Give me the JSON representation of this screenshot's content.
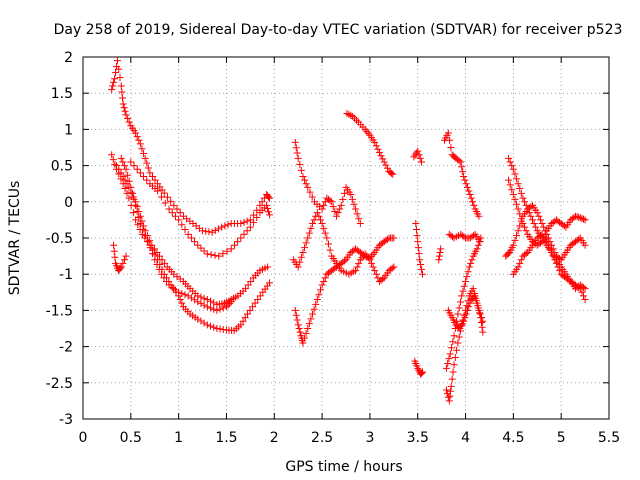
{
  "chart_data": {
    "type": "scatter",
    "title": "Day 258 of 2019, Sidereal Day-to-day VTEC variation (SDTVAR) for receiver p523",
    "xlabel": "GPS time / hours",
    "ylabel": "SDTVAR / TECUs",
    "xlim": [
      0,
      5.5
    ],
    "ylim": [
      -3,
      2
    ],
    "xticks": [
      "0",
      "0.5",
      "1",
      "1.5",
      "2",
      "2.5",
      "3",
      "3.5",
      "4",
      "4.5",
      "5",
      "5.5"
    ],
    "yticks": [
      "2",
      "1.5",
      "1",
      "0.5",
      "0",
      "-0.5",
      "-1",
      "-1.5",
      "-2",
      "-2.5",
      "-3"
    ],
    "grid": true,
    "marker": "+",
    "color": "#ff0000",
    "tracks": [
      [
        [
          0.3,
          1.55
        ],
        [
          0.33,
          1.7
        ],
        [
          0.36,
          1.95
        ],
        [
          0.4,
          1.6
        ],
        [
          0.42,
          1.35
        ],
        [
          0.45,
          1.2
        ],
        [
          0.5,
          1.05
        ],
        [
          0.55,
          0.95
        ],
        [
          0.6,
          0.8
        ],
        [
          0.65,
          0.6
        ],
        [
          0.7,
          0.4
        ],
        [
          0.78,
          0.25
        ],
        [
          0.85,
          0.12
        ],
        [
          0.95,
          -0.05
        ],
        [
          1.05,
          -0.2
        ],
        [
          1.15,
          -0.3
        ],
        [
          1.25,
          -0.4
        ],
        [
          1.35,
          -0.42
        ],
        [
          1.45,
          -0.35
        ],
        [
          1.55,
          -0.3
        ],
        [
          1.65,
          -0.3
        ],
        [
          1.75,
          -0.25
        ],
        [
          1.85,
          -0.05
        ],
        [
          1.92,
          0.1
        ],
        [
          1.95,
          0.05
        ]
      ],
      [
        [
          0.3,
          0.65
        ],
        [
          0.35,
          0.45
        ],
        [
          0.42,
          0.25
        ],
        [
          0.48,
          0.05
        ],
        [
          0.55,
          -0.25
        ],
        [
          0.62,
          -0.45
        ],
        [
          0.7,
          -0.6
        ],
        [
          0.78,
          -0.8
        ],
        [
          0.85,
          -1.0
        ],
        [
          0.92,
          -1.15
        ],
        [
          1.0,
          -1.3
        ],
        [
          1.05,
          -1.45
        ],
        [
          1.12,
          -1.55
        ],
        [
          1.2,
          -1.62
        ],
        [
          1.3,
          -1.7
        ],
        [
          1.4,
          -1.75
        ],
        [
          1.5,
          -1.77
        ],
        [
          1.58,
          -1.78
        ],
        [
          1.65,
          -1.7
        ],
        [
          1.72,
          -1.55
        ],
        [
          1.8,
          -1.4
        ],
        [
          1.88,
          -1.25
        ],
        [
          1.95,
          -1.12
        ]
      ],
      [
        [
          0.32,
          -0.6
        ],
        [
          0.34,
          -0.85
        ],
        [
          0.37,
          -0.95
        ],
        [
          0.4,
          -0.9
        ],
        [
          0.45,
          -0.75
        ]
      ],
      [
        [
          0.35,
          0.5
        ],
        [
          0.42,
          0.35
        ],
        [
          0.48,
          0.2
        ],
        [
          0.55,
          0.0
        ],
        [
          0.6,
          -0.2
        ],
        [
          0.65,
          -0.4
        ],
        [
          0.72,
          -0.6
        ],
        [
          0.8,
          -0.75
        ],
        [
          0.88,
          -0.9
        ],
        [
          0.95,
          -1.0
        ],
        [
          1.05,
          -1.1
        ],
        [
          1.12,
          -1.2
        ],
        [
          1.2,
          -1.3
        ],
        [
          1.3,
          -1.35
        ],
        [
          1.4,
          -1.42
        ],
        [
          1.48,
          -1.4
        ],
        [
          1.55,
          -1.35
        ],
        [
          1.62,
          -1.3
        ],
        [
          1.7,
          -1.2
        ],
        [
          1.78,
          -1.05
        ],
        [
          1.85,
          -0.95
        ],
        [
          1.93,
          -0.9
        ]
      ],
      [
        [
          0.4,
          0.6
        ],
        [
          0.45,
          0.45
        ],
        [
          0.5,
          0.2
        ],
        [
          0.55,
          -0.05
        ],
        [
          0.6,
          -0.3
        ],
        [
          0.68,
          -0.55
        ],
        [
          0.75,
          -0.8
        ],
        [
          0.82,
          -1.0
        ],
        [
          0.9,
          -1.15
        ],
        [
          1.0,
          -1.25
        ],
        [
          1.1,
          -1.3
        ],
        [
          1.2,
          -1.38
        ],
        [
          1.3,
          -1.45
        ],
        [
          1.4,
          -1.5
        ],
        [
          1.5,
          -1.45
        ],
        [
          1.55,
          -1.38
        ]
      ],
      [
        [
          0.5,
          0.55
        ],
        [
          0.6,
          0.4
        ],
        [
          0.7,
          0.25
        ],
        [
          0.78,
          0.15
        ],
        [
          0.9,
          -0.1
        ],
        [
          1.0,
          -0.25
        ],
        [
          1.1,
          -0.45
        ],
        [
          1.2,
          -0.6
        ],
        [
          1.3,
          -0.72
        ],
        [
          1.42,
          -0.75
        ],
        [
          1.55,
          -0.65
        ],
        [
          1.65,
          -0.5
        ],
        [
          1.75,
          -0.35
        ],
        [
          1.85,
          -0.15
        ],
        [
          1.92,
          -0.05
        ],
        [
          1.95,
          -0.18
        ]
      ],
      [
        [
          2.22,
          0.82
        ],
        [
          2.25,
          0.6
        ],
        [
          2.3,
          0.35
        ],
        [
          2.35,
          0.2
        ],
        [
          2.42,
          0.0
        ],
        [
          2.5,
          -0.1
        ],
        [
          2.55,
          0.05
        ],
        [
          2.6,
          0.0
        ],
        [
          2.65,
          -0.2
        ],
        [
          2.7,
          -0.05
        ],
        [
          2.75,
          0.2
        ],
        [
          2.8,
          0.1
        ],
        [
          2.85,
          -0.1
        ],
        [
          2.9,
          -0.3
        ]
      ],
      [
        [
          2.2,
          -0.8
        ],
        [
          2.25,
          -0.9
        ],
        [
          2.3,
          -0.7
        ],
        [
          2.35,
          -0.5
        ],
        [
          2.4,
          -0.3
        ],
        [
          2.45,
          -0.15
        ],
        [
          2.5,
          -0.3
        ],
        [
          2.55,
          -0.5
        ],
        [
          2.6,
          -0.75
        ],
        [
          2.65,
          -0.85
        ],
        [
          2.7,
          -0.95
        ],
        [
          2.78,
          -1.0
        ],
        [
          2.85,
          -0.95
        ],
        [
          2.9,
          -0.8
        ],
        [
          2.95,
          -0.72
        ],
        [
          3.0,
          -0.8
        ],
        [
          3.05,
          -0.95
        ],
        [
          3.1,
          -1.1
        ],
        [
          3.15,
          -1.05
        ],
        [
          3.2,
          -0.95
        ],
        [
          3.25,
          -0.9
        ]
      ],
      [
        [
          2.22,
          -1.5
        ],
        [
          2.25,
          -1.7
        ],
        [
          2.28,
          -1.85
        ],
        [
          2.3,
          -1.95
        ],
        [
          2.35,
          -1.75
        ],
        [
          2.4,
          -1.55
        ],
        [
          2.45,
          -1.35
        ],
        [
          2.5,
          -1.15
        ],
        [
          2.55,
          -1.0
        ],
        [
          2.6,
          -0.95
        ],
        [
          2.65,
          -0.9
        ],
        [
          2.7,
          -0.85
        ],
        [
          2.75,
          -0.8
        ],
        [
          2.8,
          -0.7
        ],
        [
          2.85,
          -0.65
        ],
        [
          2.9,
          -0.7
        ],
        [
          2.95,
          -0.75
        ],
        [
          3.0,
          -0.78
        ],
        [
          3.05,
          -0.7
        ],
        [
          3.1,
          -0.6
        ],
        [
          3.15,
          -0.55
        ],
        [
          3.2,
          -0.5
        ],
        [
          3.25,
          -0.5
        ]
      ],
      [
        [
          2.76,
          1.22
        ],
        [
          2.82,
          1.18
        ],
        [
          2.88,
          1.1
        ],
        [
          2.95,
          1.0
        ],
        [
          3.0,
          0.92
        ],
        [
          3.05,
          0.82
        ],
        [
          3.1,
          0.68
        ],
        [
          3.15,
          0.55
        ],
        [
          3.2,
          0.42
        ],
        [
          3.24,
          0.38
        ]
      ],
      [
        [
          3.46,
          0.62
        ],
        [
          3.5,
          0.7
        ],
        [
          3.54,
          0.55
        ]
      ],
      [
        [
          3.48,
          -0.3
        ],
        [
          3.5,
          -0.55
        ],
        [
          3.52,
          -0.8
        ],
        [
          3.55,
          -1.0
        ]
      ],
      [
        [
          3.47,
          -2.2
        ],
        [
          3.5,
          -2.3
        ],
        [
          3.53,
          -2.38
        ],
        [
          3.55,
          -2.35
        ]
      ],
      [
        [
          3.72,
          -0.8
        ],
        [
          3.74,
          -0.65
        ]
      ],
      [
        [
          3.78,
          0.85
        ],
        [
          3.82,
          0.95
        ],
        [
          3.86,
          0.65
        ],
        [
          3.9,
          0.6
        ],
        [
          3.95,
          0.55
        ],
        [
          3.98,
          0.35
        ],
        [
          4.02,
          0.2
        ],
        [
          4.06,
          0.05
        ],
        [
          4.1,
          -0.1
        ],
        [
          4.14,
          -0.2
        ]
      ],
      [
        [
          3.83,
          -0.45
        ],
        [
          3.88,
          -0.5
        ],
        [
          3.95,
          -0.45
        ],
        [
          4.0,
          -0.5
        ],
        [
          4.05,
          -0.5
        ],
        [
          4.1,
          -0.45
        ],
        [
          4.15,
          -0.55
        ]
      ],
      [
        [
          3.8,
          -2.6
        ],
        [
          3.83,
          -2.75
        ],
        [
          3.85,
          -2.55
        ],
        [
          3.88,
          -2.25
        ],
        [
          3.92,
          -1.95
        ],
        [
          3.96,
          -1.7
        ],
        [
          4.0,
          -1.5
        ],
        [
          4.04,
          -1.3
        ],
        [
          4.08,
          -1.2
        ],
        [
          4.12,
          -1.4
        ],
        [
          4.16,
          -1.6
        ],
        [
          4.18,
          -1.8
        ]
      ],
      [
        [
          3.8,
          -2.3
        ],
        [
          3.84,
          -2.1
        ],
        [
          3.88,
          -1.85
        ],
        [
          3.92,
          -1.55
        ],
        [
          3.96,
          -1.3
        ],
        [
          4.0,
          -1.1
        ],
        [
          4.04,
          -0.9
        ],
        [
          4.08,
          -0.75
        ],
        [
          4.12,
          -0.65
        ],
        [
          4.16,
          -0.5
        ]
      ],
      [
        [
          3.82,
          -1.5
        ],
        [
          3.86,
          -1.6
        ],
        [
          3.9,
          -1.7
        ],
        [
          3.94,
          -1.75
        ],
        [
          3.98,
          -1.65
        ],
        [
          4.02,
          -1.5
        ],
        [
          4.06,
          -1.35
        ],
        [
          4.1,
          -1.3
        ],
        [
          4.14,
          -1.5
        ],
        [
          4.18,
          -1.65
        ]
      ],
      [
        [
          4.45,
          0.6
        ],
        [
          4.5,
          0.45
        ],
        [
          4.55,
          0.25
        ],
        [
          4.6,
          0.05
        ],
        [
          4.65,
          -0.1
        ],
        [
          4.7,
          -0.25
        ],
        [
          4.75,
          -0.4
        ],
        [
          4.8,
          -0.5
        ],
        [
          4.85,
          -0.6
        ],
        [
          4.9,
          -0.7
        ],
        [
          4.95,
          -0.8
        ],
        [
          5.0,
          -0.9
        ],
        [
          5.05,
          -1.0
        ],
        [
          5.1,
          -1.1
        ],
        [
          5.15,
          -1.15
        ],
        [
          5.2,
          -1.2
        ],
        [
          5.25,
          -1.35
        ]
      ],
      [
        [
          4.42,
          -0.75
        ],
        [
          4.46,
          -0.7
        ],
        [
          4.5,
          -0.6
        ],
        [
          4.55,
          -0.4
        ],
        [
          4.6,
          -0.2
        ],
        [
          4.65,
          -0.1
        ],
        [
          4.7,
          -0.05
        ],
        [
          4.75,
          -0.15
        ],
        [
          4.8,
          -0.3
        ],
        [
          4.85,
          -0.45
        ],
        [
          4.9,
          -0.6
        ],
        [
          4.95,
          -0.75
        ],
        [
          5.0,
          -0.8
        ],
        [
          5.05,
          -0.7
        ],
        [
          5.1,
          -0.6
        ],
        [
          5.15,
          -0.55
        ],
        [
          5.2,
          -0.5
        ],
        [
          5.25,
          -0.6
        ]
      ],
      [
        [
          4.45,
          0.3
        ],
        [
          4.5,
          0.1
        ],
        [
          4.55,
          -0.1
        ],
        [
          4.6,
          -0.3
        ],
        [
          4.65,
          -0.45
        ],
        [
          4.7,
          -0.55
        ],
        [
          4.75,
          -0.6
        ],
        [
          4.8,
          -0.55
        ],
        [
          4.85,
          -0.4
        ],
        [
          4.9,
          -0.3
        ],
        [
          4.95,
          -0.25
        ],
        [
          5.0,
          -0.3
        ],
        [
          5.05,
          -0.35
        ],
        [
          5.1,
          -0.25
        ],
        [
          5.15,
          -0.2
        ],
        [
          5.2,
          -0.22
        ],
        [
          5.25,
          -0.25
        ]
      ],
      [
        [
          4.5,
          -1.0
        ],
        [
          4.55,
          -0.9
        ],
        [
          4.6,
          -0.75
        ],
        [
          4.65,
          -0.7
        ],
        [
          4.7,
          -0.6
        ],
        [
          4.75,
          -0.5
        ],
        [
          4.8,
          -0.45
        ],
        [
          4.85,
          -0.55
        ],
        [
          4.9,
          -0.7
        ],
        [
          4.95,
          -0.85
        ],
        [
          5.0,
          -1.0
        ],
        [
          5.05,
          -1.05
        ],
        [
          5.1,
          -1.1
        ],
        [
          5.15,
          -1.2
        ],
        [
          5.2,
          -1.15
        ],
        [
          5.25,
          -1.2
        ]
      ]
    ]
  }
}
